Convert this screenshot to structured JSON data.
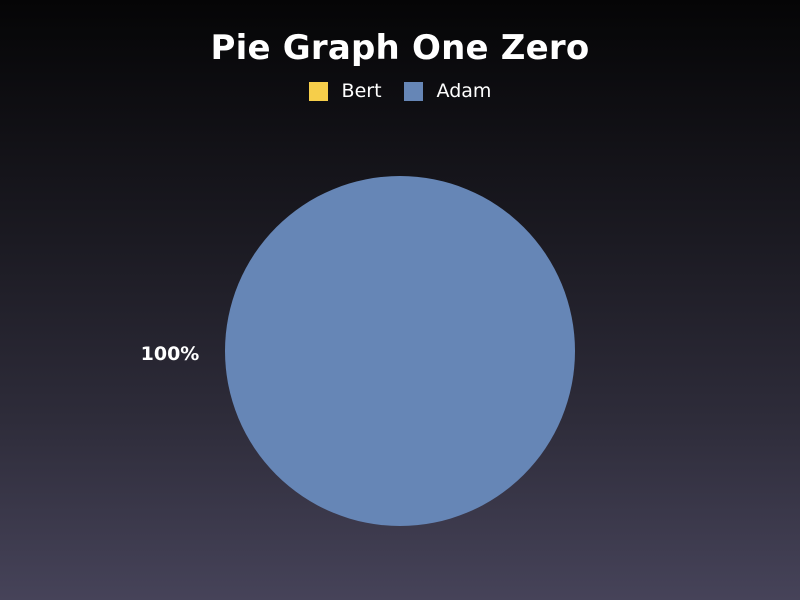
{
  "chart_data": {
    "type": "pie",
    "title": "Pie Graph One Zero",
    "legend_position": "top",
    "categories": [
      "Bert",
      "Adam"
    ],
    "values": [
      0,
      100
    ],
    "colors": [
      "#f6ce4a",
      "#6686b6"
    ],
    "data_labels": [
      "100%"
    ]
  }
}
